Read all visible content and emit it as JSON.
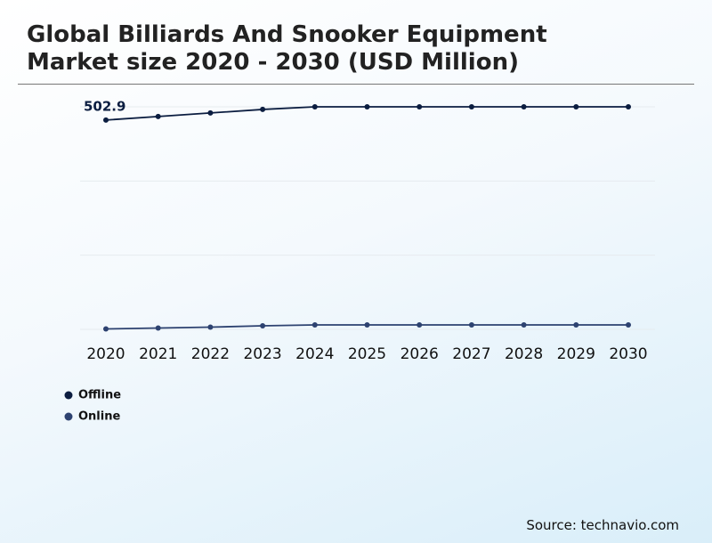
{
  "chart_data": {
    "type": "line",
    "title": "Global Billiards And Snooker Equipment Market size 2020 - 2030 (USD Million)",
    "categories": [
      "2020",
      "2021",
      "2022",
      "2023",
      "2024",
      "2025",
      "2026",
      "2027",
      "2028",
      "2029",
      "2030"
    ],
    "series": [
      {
        "name": "Offline",
        "color": "#0b1d40",
        "values": [
          473,
          481,
          489,
          497,
          502.9,
          502.9,
          502.9,
          502.9,
          502.9,
          502.9,
          502.9
        ]
      },
      {
        "name": "Online",
        "color": "#2d4270",
        "values": [
          1,
          3,
          5,
          8,
          10,
          10,
          10,
          10,
          10,
          10,
          10
        ]
      }
    ],
    "annotation": 502.9,
    "ylim": [
      0,
      502.9
    ],
    "grid": true,
    "source": "Source: technavio.com"
  }
}
